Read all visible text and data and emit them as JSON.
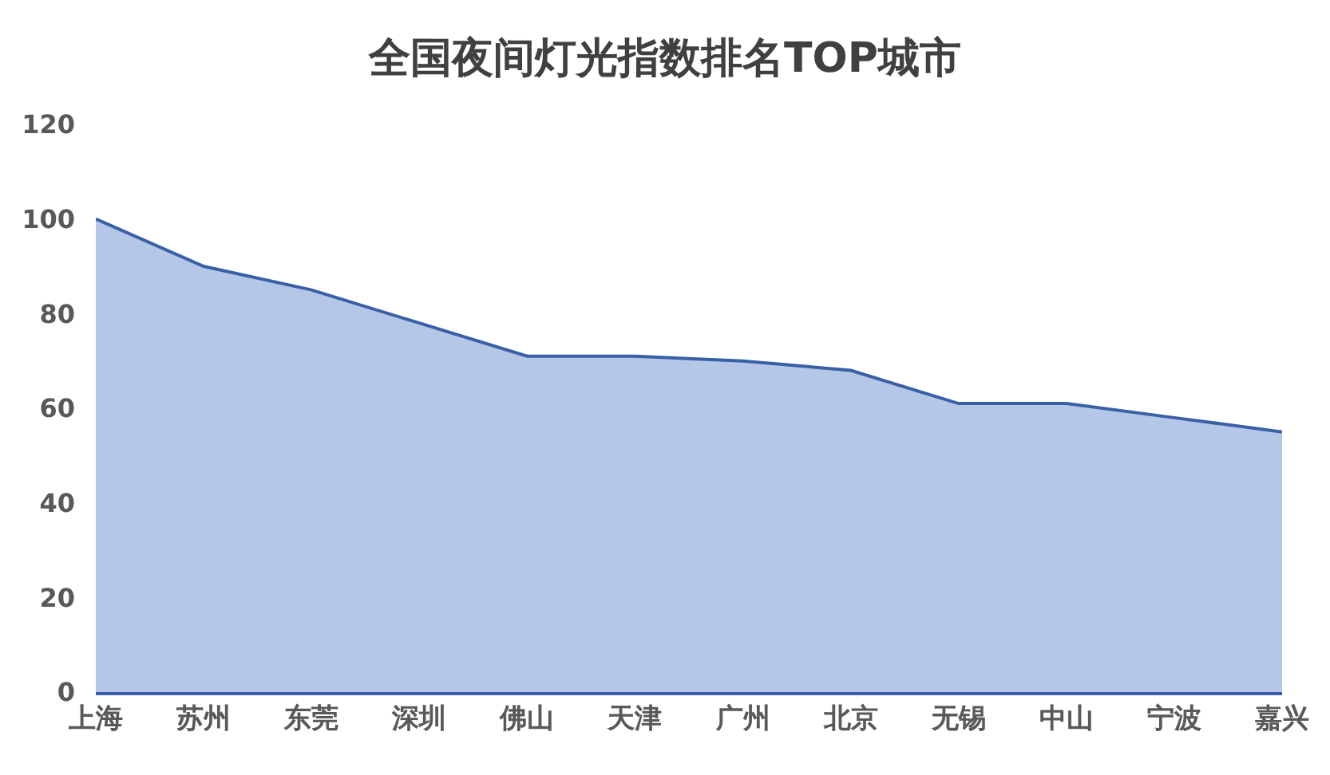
{
  "chart_data": {
    "type": "area",
    "title": "全国夜间灯光指数排名TOP城市",
    "categories": [
      "上海",
      "苏州",
      "东莞",
      "深圳",
      "佛山",
      "天津",
      "广州",
      "北京",
      "无锡",
      "中山",
      "宁波",
      "嘉兴"
    ],
    "series": [
      {
        "color": "#4472c4",
        "values": [
          100,
          90,
          85,
          78,
          71,
          71,
          70,
          68,
          61,
          61,
          58,
          55
        ]
      }
    ],
    "ylim": [
      0,
      120
    ],
    "yticks": [
      0,
      20,
      40,
      60,
      80,
      100,
      120
    ],
    "grid": false
  }
}
